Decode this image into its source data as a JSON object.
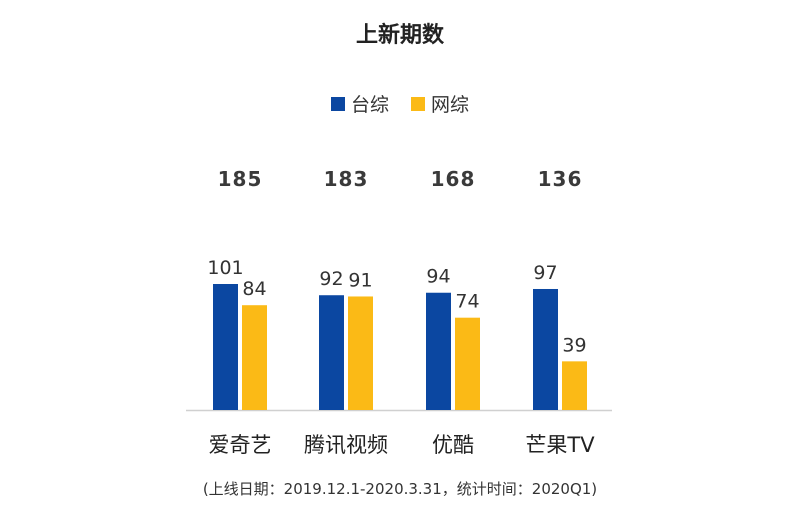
{
  "chart_data": {
    "type": "bar",
    "title": "上新期数",
    "categories": [
      "爱奇艺",
      "腾讯视频",
      "优酷",
      "芒果TV"
    ],
    "series": [
      {
        "name": "台综",
        "values": [
          101,
          92,
          94,
          97
        ],
        "color": "#0B47A1"
      },
      {
        "name": "网综",
        "values": [
          84,
          91,
          74,
          39
        ],
        "color": "#FBBA16"
      }
    ],
    "totals": [
      185,
      183,
      168,
      136
    ],
    "ylim": [
      0,
      120
    ],
    "grid": false,
    "legend_position": "top"
  },
  "footnote": "(上线日期：2019.12.1-2020.3.31，统计时间：2020Q1)",
  "colors": {
    "text": "#333333",
    "total_text": "#3a3a3a",
    "axis": "#d0d0d0"
  }
}
